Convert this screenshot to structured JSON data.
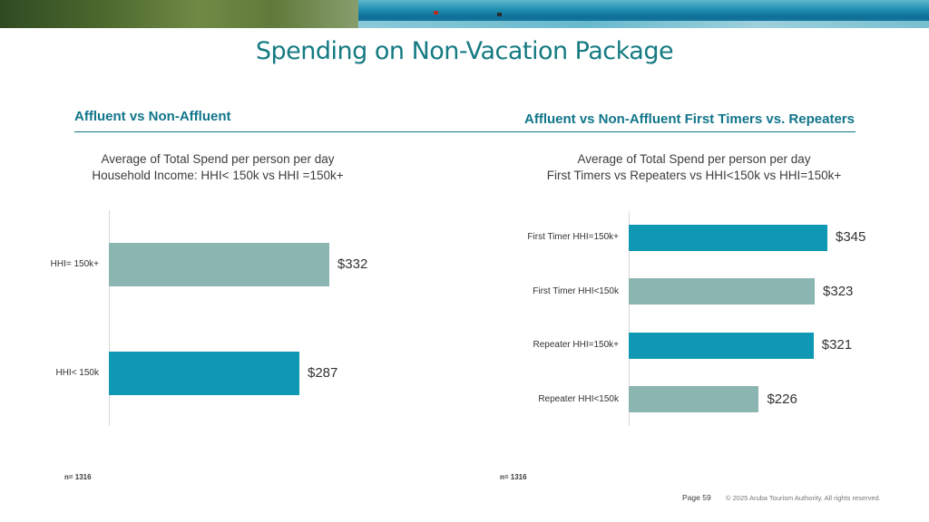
{
  "page": {
    "title": "Spending on Non-Vacation Package",
    "page_label": "Page 59",
    "copyright": "© 2025 Aruba Tourism Authority. All rights reserved."
  },
  "left": {
    "section_title": "Affluent vs Non-Affluent",
    "subtitle_line1": "Average of Total Spend per person per day",
    "subtitle_line2": "Household Income: HHI< 150k vs HHI =150k+",
    "note": "n= 1316"
  },
  "right": {
    "section_title": "Affluent vs Non-Affluent First Timers vs. Repeaters",
    "subtitle_line1": "Average of Total Spend per person per day",
    "subtitle_line2": "First Timers vs Repeaters vs HHI<150k vs HHI=150k+",
    "note": "n= 1316"
  },
  "colors": {
    "teal": "#0f98b3",
    "sage": "#8bb5b1",
    "heading": "#11758a",
    "title": "#157a82"
  },
  "chart_data": [
    {
      "type": "bar",
      "orientation": "horizontal",
      "title": "Average of Total Spend per person per day",
      "subtitle": "Household Income: HHI< 150k vs HHI =150k+",
      "categories": [
        "HHI= 150k+",
        "HHI< 150k"
      ],
      "values": [
        332,
        287
      ],
      "labels": [
        "$332",
        "$287"
      ],
      "colors": [
        "#8bb5b1",
        "#0f98b3"
      ],
      "xlim": [
        0,
        820
      ],
      "grid": false
    },
    {
      "type": "bar",
      "orientation": "horizontal",
      "title": "Average of Total Spend per person per day",
      "subtitle": "First Timers vs Repeaters vs HHI<150k vs HHI=150k+",
      "categories": [
        "First Timer HHI=150k+",
        "First Timer HHI<150k",
        "Repeater HHI=150k+",
        "Repeater HHI<150k"
      ],
      "values": [
        345,
        323,
        321,
        226
      ],
      "labels": [
        "$345",
        "$323",
        "$321",
        "$226"
      ],
      "colors": [
        "#0f98b3",
        "#8bb5b1",
        "#0f98b3",
        "#8bb5b1"
      ],
      "xlim": [
        0,
        460
      ],
      "grid": false
    }
  ]
}
